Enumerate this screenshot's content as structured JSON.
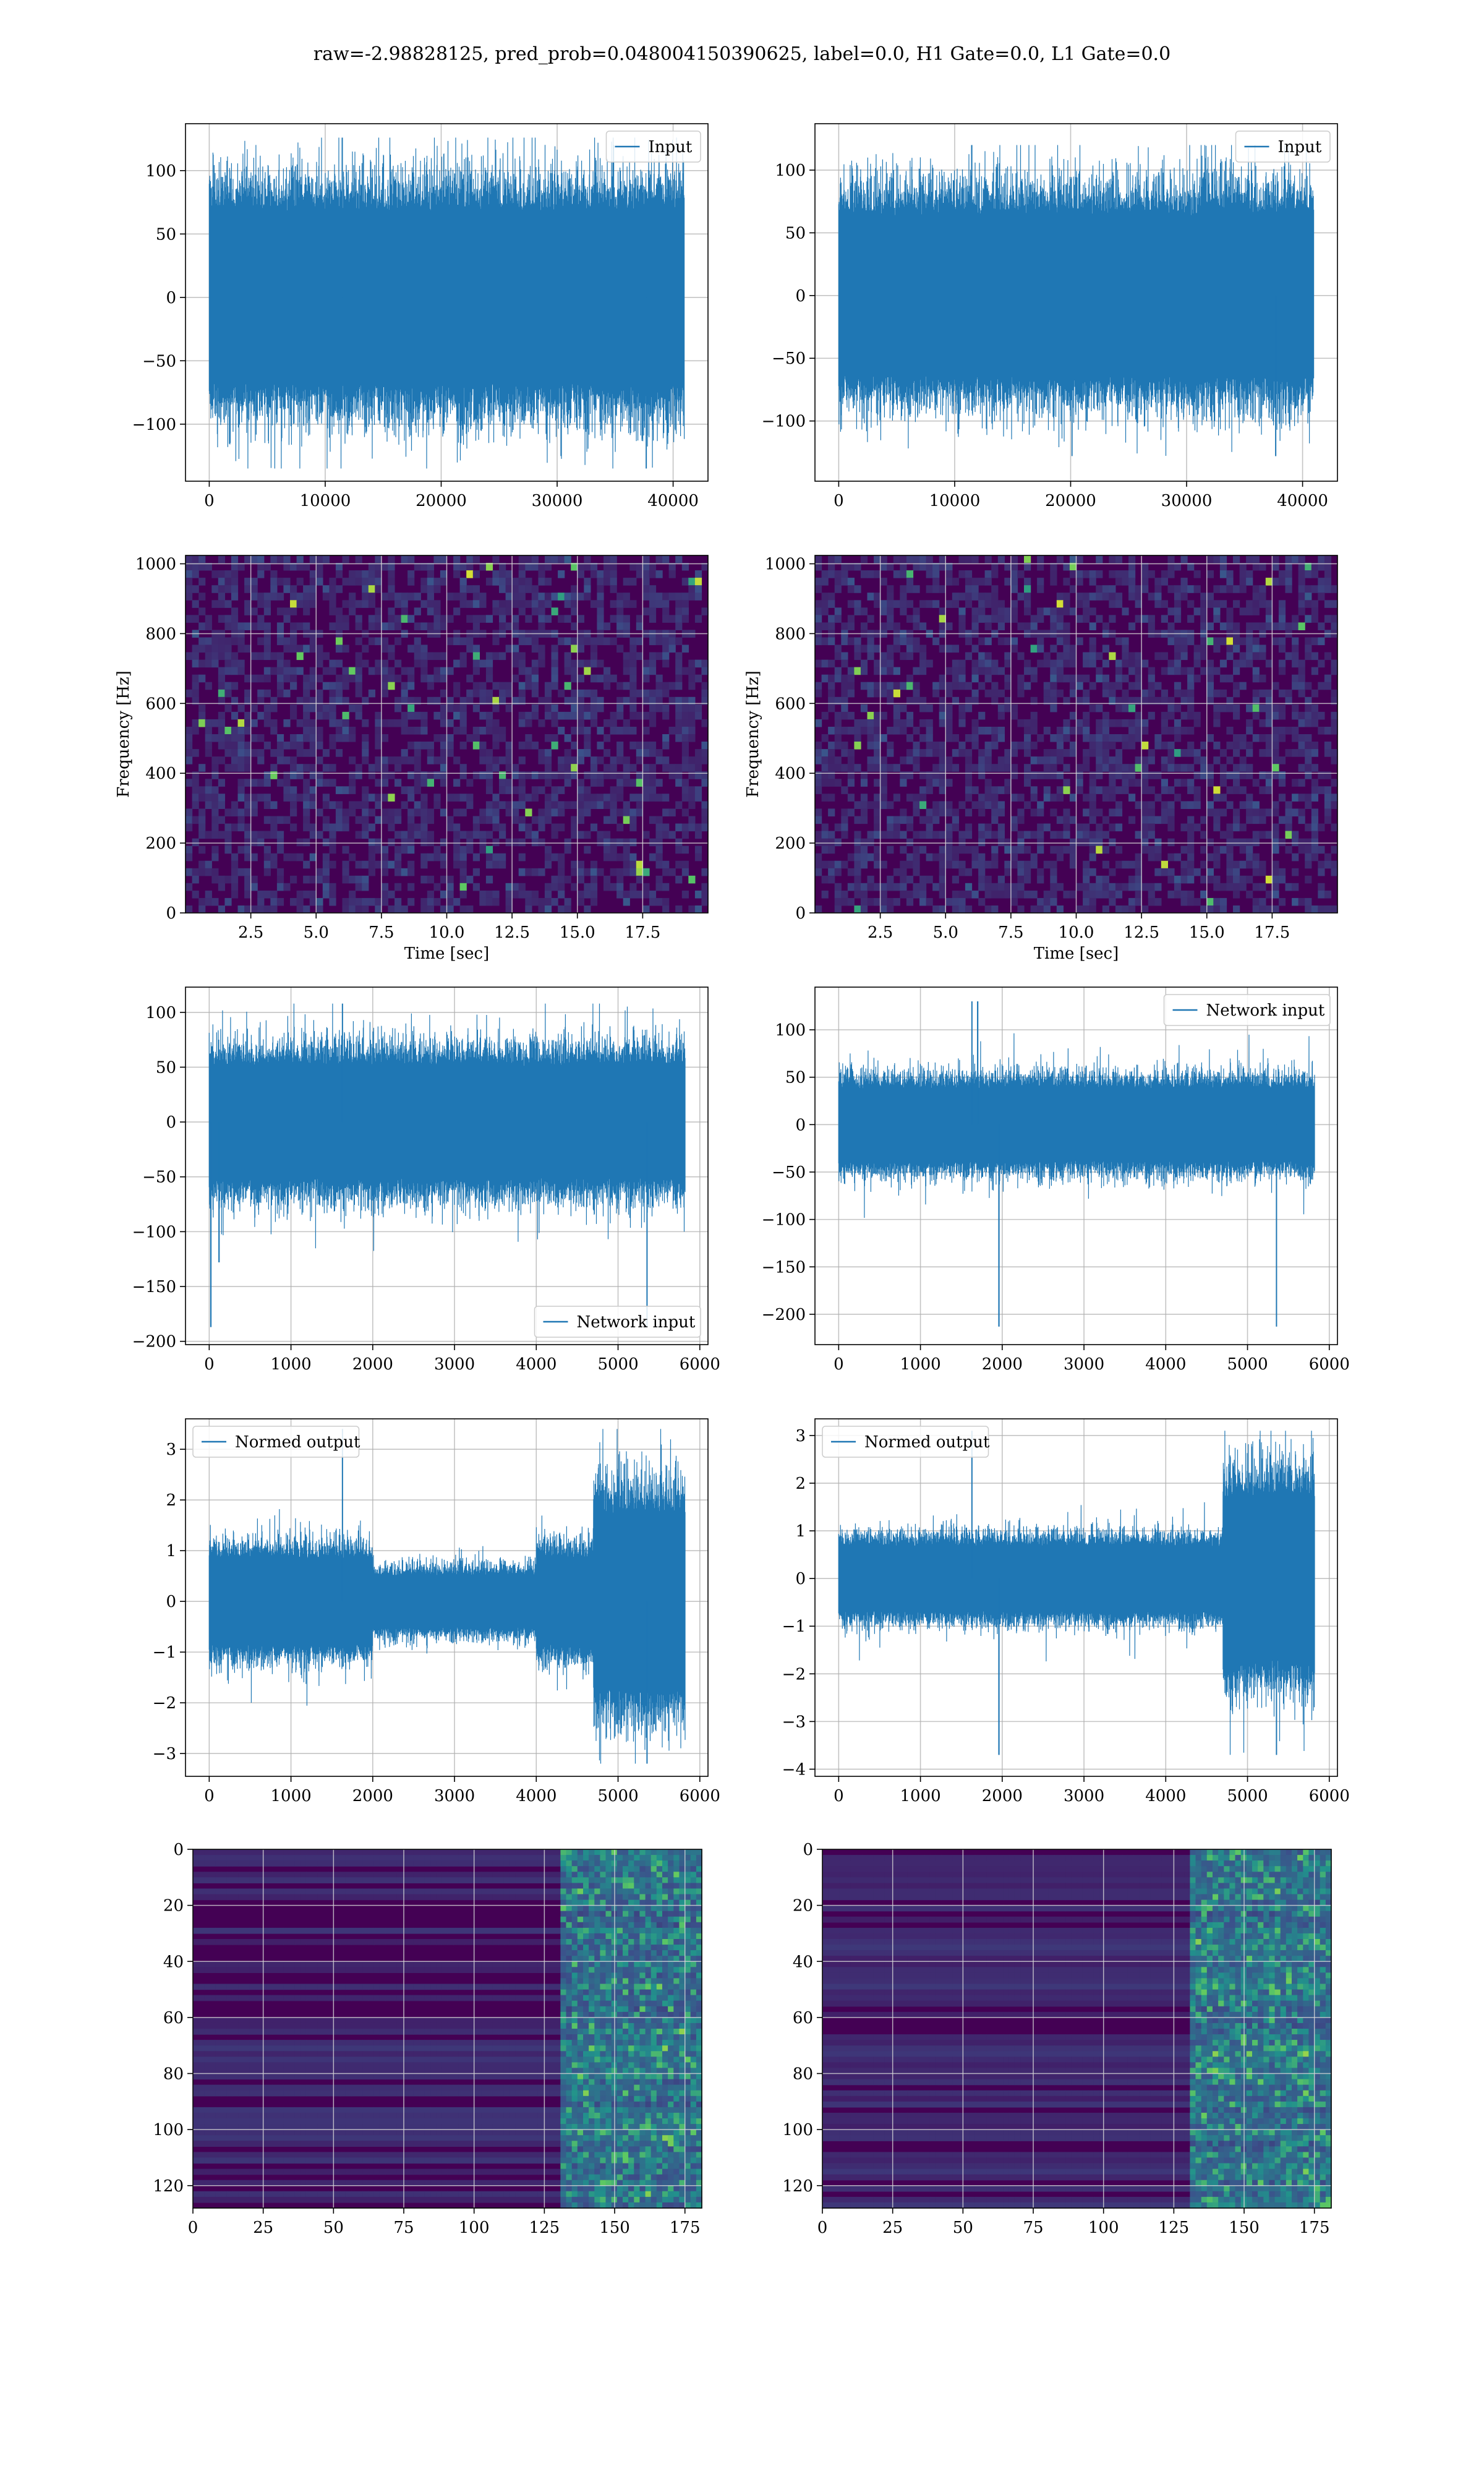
{
  "suptitle": "raw=-2.98828125, pred_prob=0.048004150390625, label=0.0, H1 Gate=0.0, L1 Gate=0.0",
  "colors": {
    "line": "#1f77b4",
    "grid": "#b0b0b0",
    "viridis_low": "#440154",
    "viridis_high": "#fde725"
  },
  "chart_data": [
    {
      "id": "input-h1",
      "type": "line",
      "legend": [
        "Input"
      ],
      "legend_loc": "upper right",
      "xlim": [
        -2048,
        43008
      ],
      "ylim": [
        -145,
        137
      ],
      "xticks": [
        0,
        10000,
        20000,
        30000,
        40000
      ],
      "xticklabels": [
        "0",
        "10000",
        "20000",
        "30000",
        "40000"
      ],
      "yticks": [
        -100,
        -50,
        0,
        50,
        100
      ],
      "yticklabels": [
        "−100",
        "−50",
        "0",
        "50",
        "100"
      ],
      "series": [
        {
          "name": "Input",
          "x_range": [
            0,
            40960
          ],
          "envelope_max": 126,
          "envelope_min": -135,
          "typical_amplitude": 80
        }
      ],
      "grid": true
    },
    {
      "id": "input-l1",
      "type": "line",
      "legend": [
        "Input"
      ],
      "legend_loc": "upper right",
      "xlim": [
        -2048,
        43008
      ],
      "ylim": [
        -148,
        137
      ],
      "xticks": [
        0,
        10000,
        20000,
        30000,
        40000
      ],
      "xticklabels": [
        "0",
        "10000",
        "20000",
        "30000",
        "40000"
      ],
      "yticks": [
        -100,
        -50,
        0,
        50,
        100
      ],
      "yticklabels": [
        "−100",
        "−50",
        "0",
        "50",
        "100"
      ],
      "series": [
        {
          "name": "Input",
          "x_range": [
            0,
            40960
          ],
          "envelope_max": 120,
          "envelope_min": -128,
          "typical_amplitude": 75
        }
      ],
      "grid": true
    },
    {
      "id": "spec-h1",
      "type": "heatmap",
      "xlabel": "Time [sec]",
      "ylabel": "Frequency [Hz]",
      "xlim": [
        0,
        20
      ],
      "ylim": [
        0,
        1024
      ],
      "xticks": [
        2.5,
        5.0,
        7.5,
        10.0,
        12.5,
        15.0,
        17.5
      ],
      "xticklabels": [
        "2.5",
        "5.0",
        "7.5",
        "10.0",
        "12.5",
        "15.0",
        "17.5"
      ],
      "yticks": [
        0,
        200,
        400,
        600,
        800,
        1000
      ],
      "yticklabels": [
        "0",
        "200",
        "400",
        "600",
        "800",
        "1000"
      ],
      "colormap": "viridis",
      "grid": true
    },
    {
      "id": "spec-l1",
      "type": "heatmap",
      "xlabel": "Time [sec]",
      "ylabel": "Frequency [Hz]",
      "xlim": [
        0,
        20
      ],
      "ylim": [
        0,
        1024
      ],
      "xticks": [
        2.5,
        5.0,
        7.5,
        10.0,
        12.5,
        15.0,
        17.5
      ],
      "xticklabels": [
        "2.5",
        "5.0",
        "7.5",
        "10.0",
        "12.5",
        "15.0",
        "17.5"
      ],
      "yticks": [
        0,
        200,
        400,
        600,
        800,
        1000
      ],
      "yticklabels": [
        "0",
        "200",
        "400",
        "600",
        "800",
        "1000"
      ],
      "colormap": "viridis",
      "grid": true
    },
    {
      "id": "netin-h1",
      "type": "line",
      "legend": [
        "Network input"
      ],
      "legend_loc": "lower right",
      "xlim": [
        -290,
        6100
      ],
      "ylim": [
        -203,
        123
      ],
      "xticks": [
        0,
        1000,
        2000,
        3000,
        4000,
        5000,
        6000
      ],
      "xticklabels": [
        "0",
        "1000",
        "2000",
        "3000",
        "4000",
        "5000",
        "6000"
      ],
      "yticks": [
        -200,
        -150,
        -100,
        -50,
        0,
        50,
        100
      ],
      "yticklabels": [
        "−200",
        "−150",
        "−100",
        "−50",
        "0",
        "50",
        "100"
      ],
      "series": [
        {
          "name": "Network input",
          "x_range": [
            0,
            5820
          ],
          "envelope_max": 108,
          "envelope_min": -187,
          "typical_amplitude": 60,
          "spikes": [
            {
              "x": 20,
              "y": -187
            },
            {
              "x": 120,
              "y": -128
            }
          ]
        }
      ],
      "grid": true
    },
    {
      "id": "netin-l1",
      "type": "line",
      "legend": [
        "Network input"
      ],
      "legend_loc": "upper right",
      "xlim": [
        -290,
        6100
      ],
      "ylim": [
        -232,
        145
      ],
      "xticks": [
        0,
        1000,
        2000,
        3000,
        4000,
        5000,
        6000
      ],
      "xticklabels": [
        "0",
        "1000",
        "2000",
        "3000",
        "4000",
        "5000",
        "6000"
      ],
      "yticks": [
        -200,
        -150,
        -100,
        -50,
        0,
        50,
        100
      ],
      "yticklabels": [
        "−200",
        "−150",
        "−100",
        "−50",
        "0",
        "50",
        "100"
      ],
      "series": [
        {
          "name": "Network input",
          "x_range": [
            0,
            5820
          ],
          "envelope_max": 130,
          "envelope_min": -213,
          "typical_amplitude": 45,
          "spikes": [
            {
              "x": 1960,
              "y": -213
            },
            {
              "x": 1700,
              "y": 130
            }
          ]
        }
      ],
      "grid": true
    },
    {
      "id": "normed-h1",
      "type": "line",
      "legend": [
        "Normed output"
      ],
      "legend_loc": "upper left",
      "xlim": [
        -290,
        6100
      ],
      "ylim": [
        -3.45,
        3.6
      ],
      "xticks": [
        0,
        1000,
        2000,
        3000,
        4000,
        5000,
        6000
      ],
      "xticklabels": [
        "0",
        "1000",
        "2000",
        "3000",
        "4000",
        "5000",
        "6000"
      ],
      "yticks": [
        -3,
        -2,
        -1,
        0,
        1,
        2,
        3
      ],
      "yticklabels": [
        "−3",
        "−2",
        "−1",
        "0",
        "1",
        "2",
        "3"
      ],
      "series": [
        {
          "name": "Normed output",
          "x_range": [
            0,
            5820
          ],
          "envelope_max": 3.4,
          "envelope_min": -3.2,
          "amplitude_segments": [
            {
              "x": [
                0,
                2000
              ],
              "amplitude": 1.0
            },
            {
              "x": [
                2000,
                4000
              ],
              "amplitude": 0.6
            },
            {
              "x": [
                4000,
                4700
              ],
              "amplitude": 1.0
            },
            {
              "x": [
                4700,
                5820
              ],
              "amplitude": 2.0
            }
          ]
        }
      ],
      "grid": true
    },
    {
      "id": "normed-l1",
      "type": "line",
      "legend": [
        "Normed output"
      ],
      "legend_loc": "upper left",
      "xlim": [
        -290,
        6100
      ],
      "ylim": [
        -4.15,
        3.35
      ],
      "xticks": [
        0,
        1000,
        2000,
        3000,
        4000,
        5000,
        6000
      ],
      "xticklabels": [
        "0",
        "1000",
        "2000",
        "3000",
        "4000",
        "5000",
        "6000"
      ],
      "yticks": [
        -4,
        -3,
        -2,
        -1,
        0,
        1,
        2,
        3
      ],
      "yticklabels": [
        "−4",
        "−3",
        "−2",
        "−1",
        "0",
        "1",
        "2",
        "3"
      ],
      "series": [
        {
          "name": "Normed output",
          "x_range": [
            0,
            5820
          ],
          "envelope_max": 3.1,
          "envelope_min": -3.7,
          "amplitude_segments": [
            {
              "x": [
                0,
                4700
              ],
              "amplitude": 0.8
            },
            {
              "x": [
                4700,
                5820
              ],
              "amplitude": 2.0
            }
          ],
          "spikes": [
            {
              "x": 1960,
              "y": -3.7
            }
          ]
        }
      ],
      "grid": true
    },
    {
      "id": "features-h1",
      "type": "heatmap",
      "colormap": "viridis",
      "xlim": [
        0,
        181
      ],
      "ylim": [
        128,
        0
      ],
      "xticks": [
        0,
        25,
        50,
        75,
        100,
        125,
        150,
        175
      ],
      "xticklabels": [
        "0",
        "25",
        "50",
        "75",
        "100",
        "125",
        "150",
        "175"
      ],
      "yticks": [
        0,
        20,
        40,
        60,
        80,
        100,
        120
      ],
      "yticklabels": [
        "0",
        "20",
        "40",
        "60",
        "80",
        "100",
        "120"
      ],
      "active_region_x": [
        130,
        181
      ],
      "grid": true
    },
    {
      "id": "features-l1",
      "type": "heatmap",
      "colormap": "viridis",
      "xlim": [
        0,
        181
      ],
      "ylim": [
        128,
        0
      ],
      "xticks": [
        0,
        25,
        50,
        75,
        100,
        125,
        150,
        175
      ],
      "xticklabels": [
        "0",
        "25",
        "50",
        "75",
        "100",
        "125",
        "150",
        "175"
      ],
      "yticks": [
        0,
        20,
        40,
        60,
        80,
        100,
        120
      ],
      "yticklabels": [
        "0",
        "20",
        "40",
        "60",
        "80",
        "100",
        "120"
      ],
      "active_region_x": [
        130,
        181
      ],
      "grid": true
    }
  ]
}
